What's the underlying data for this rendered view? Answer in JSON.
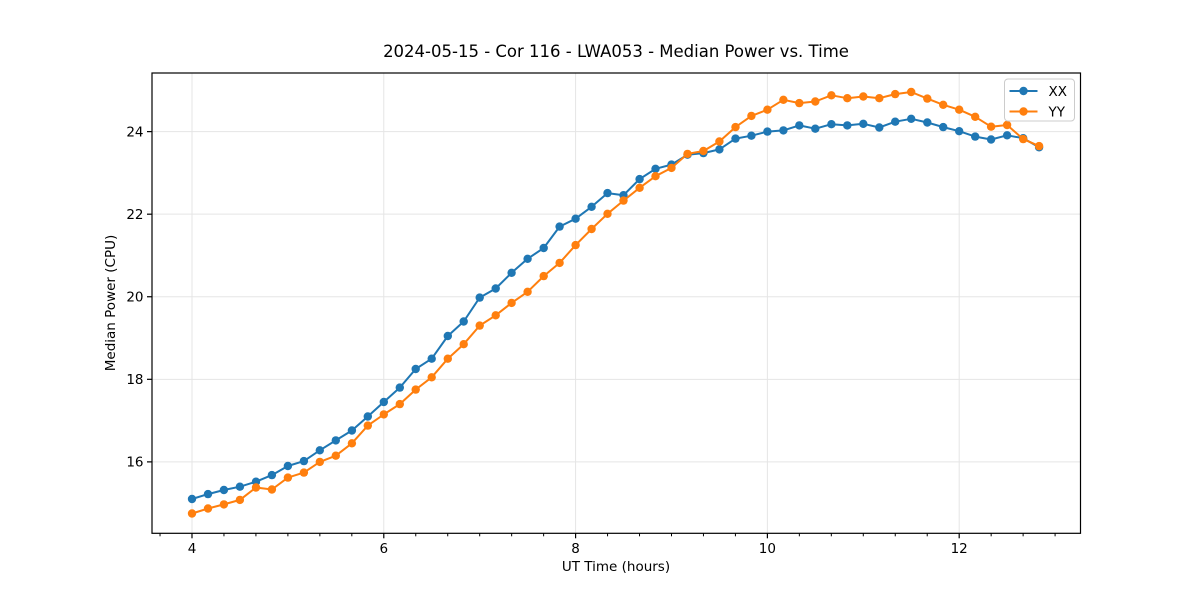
{
  "chart_data": {
    "type": "line",
    "title": "2024-05-15 - Cor 116 - LWA053 - Median Power vs. Time",
    "xlabel": "UT Time (hours)",
    "ylabel": "Median Power (CPU)",
    "xlim": [
      3.583,
      13.265
    ],
    "ylim": [
      14.27,
      25.42
    ],
    "x_ticks": [
      4,
      6,
      8,
      10,
      12
    ],
    "x_minor_step": 0.3333,
    "y_ticks": [
      16,
      18,
      20,
      22,
      24
    ],
    "grid": true,
    "legend_position": "upper right",
    "x": [
      4,
      4.167,
      4.333,
      4.5,
      4.667,
      4.833,
      5,
      5.167,
      5.333,
      5.5,
      5.667,
      5.833,
      6,
      6.167,
      6.333,
      6.5,
      6.667,
      6.833,
      7,
      7.167,
      7.333,
      7.5,
      7.667,
      7.833,
      8,
      8.167,
      8.333,
      8.5,
      8.667,
      8.833,
      9,
      9.167,
      9.333,
      9.5,
      9.667,
      9.833,
      10,
      10.167,
      10.333,
      10.5,
      10.667,
      10.833,
      11,
      11.167,
      11.333,
      11.5,
      11.667,
      11.833,
      12,
      12.167,
      12.333,
      12.5,
      12.667,
      12.833
    ],
    "series": [
      {
        "name": "XX",
        "color": "#1f77b4",
        "marker": "circle",
        "values": [
          15.1,
          15.22,
          15.32,
          15.4,
          15.52,
          15.68,
          15.9,
          16.02,
          16.28,
          16.52,
          16.76,
          17.1,
          17.45,
          17.8,
          18.25,
          18.5,
          19.05,
          19.4,
          19.98,
          20.2,
          20.58,
          20.92,
          21.18,
          21.7,
          21.89,
          22.18,
          22.51,
          22.46,
          22.85,
          23.1,
          23.2,
          23.44,
          23.48,
          23.57,
          23.83,
          23.9,
          24,
          24.03,
          24.15,
          24.07,
          24.18,
          24.15,
          24.19,
          24.1,
          24.24,
          24.31,
          24.22,
          24.11,
          24.01,
          23.88,
          23.81,
          23.91,
          23.84,
          23.62
        ]
      },
      {
        "name": "YY",
        "color": "#ff7f0e",
        "marker": "circle",
        "values": [
          14.75,
          14.87,
          14.97,
          15.08,
          15.38,
          15.33,
          15.62,
          15.74,
          16,
          16.15,
          16.45,
          16.88,
          17.15,
          17.4,
          17.75,
          18.05,
          18.5,
          18.85,
          19.3,
          19.55,
          19.85,
          20.12,
          20.5,
          20.82,
          21.25,
          21.64,
          22.01,
          22.33,
          22.64,
          22.92,
          23.12,
          23.46,
          23.53,
          23.76,
          24.11,
          24.38,
          24.53,
          24.77,
          24.69,
          24.73,
          24.88,
          24.81,
          24.85,
          24.81,
          24.91,
          24.96,
          24.8,
          24.65,
          24.53,
          24.36,
          24.12,
          24.16,
          23.82,
          23.65
        ]
      }
    ]
  },
  "style": {
    "background": "#ffffff",
    "grid_color": "#e5e5e5",
    "spine_color": "#000000",
    "text_color": "#000000",
    "legend_border": "#cccccc"
  }
}
